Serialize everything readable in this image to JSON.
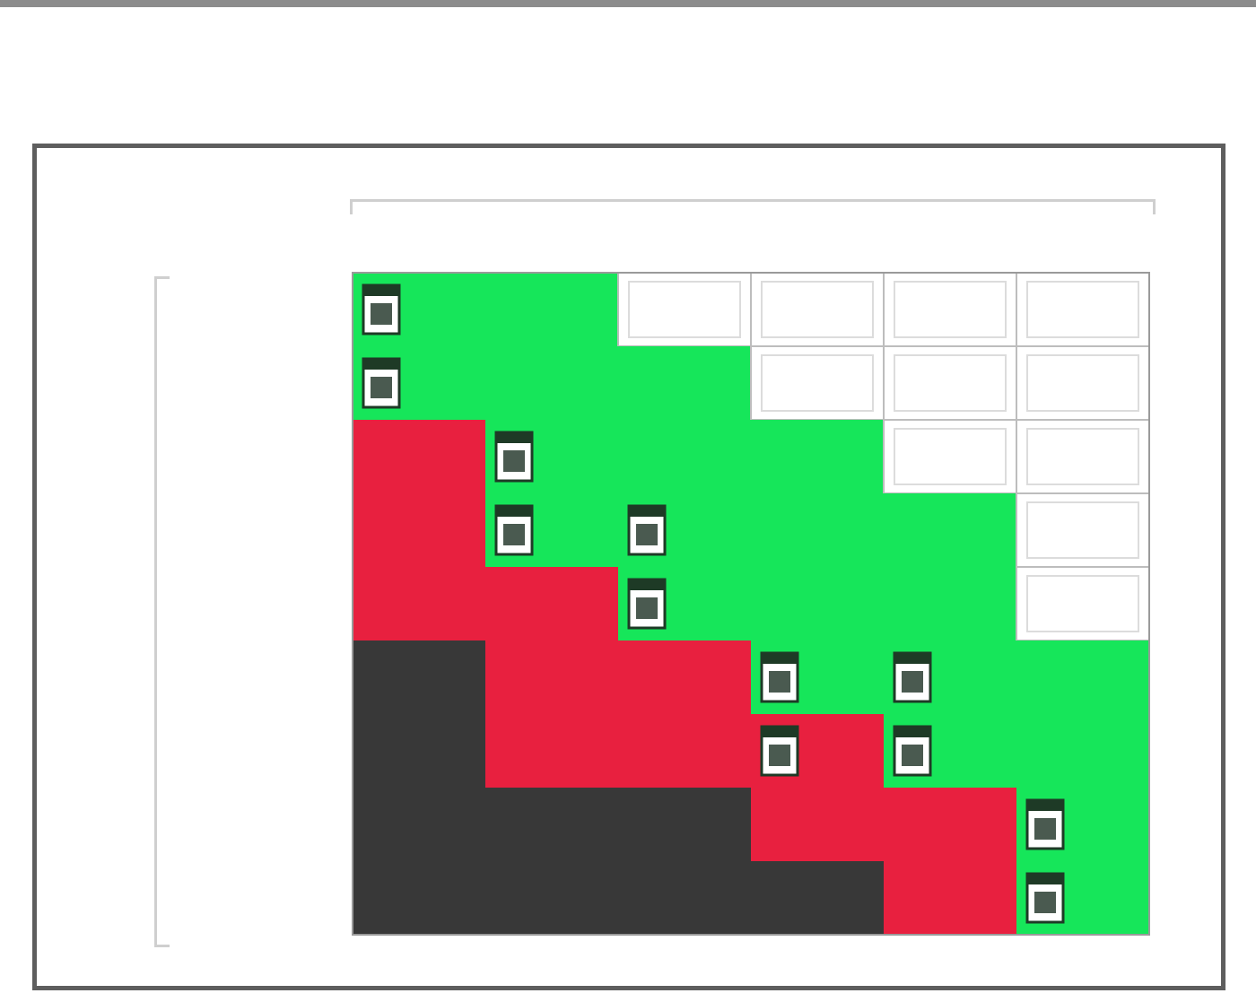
{
  "title": {
    "line1": "",
    "line2": "",
    "subtitle": ""
  },
  "colors": {
    "red": "#e8203f",
    "green": "#16e65a",
    "dark": "#383838",
    "white": "#ffffff"
  },
  "chart_data": {
    "type": "heatmap",
    "column_group_label": "",
    "row_group_label": "",
    "columns": [
      "",
      "",
      "",
      "",
      "",
      ""
    ],
    "rows": [
      "",
      "",
      "",
      "",
      "",
      "",
      "",
      "",
      ""
    ],
    "cells": [
      [
        "green",
        "green",
        "white",
        "white",
        "white",
        "white"
      ],
      [
        "green",
        "green",
        "green",
        "white",
        "white",
        "white"
      ],
      [
        "red",
        "green",
        "green",
        "green",
        "white",
        "white"
      ],
      [
        "red",
        "green",
        "green",
        "green",
        "green",
        "white"
      ],
      [
        "red",
        "red",
        "green",
        "green",
        "green",
        "white"
      ],
      [
        "dark",
        "red",
        "red",
        "green",
        "green",
        "green"
      ],
      [
        "dark",
        "red",
        "red",
        "red",
        "green",
        "green"
      ],
      [
        "dark",
        "dark",
        "dark",
        "red",
        "red",
        "green"
      ],
      [
        "dark",
        "dark",
        "dark",
        "dark",
        "red",
        "green"
      ]
    ],
    "cell_labels": [
      [
        "",
        "",
        "",
        "",
        "",
        ""
      ],
      [
        "",
        "",
        "",
        "",
        "",
        ""
      ],
      [
        "",
        "",
        "",
        "",
        "",
        ""
      ],
      [
        "",
        "",
        "",
        "",
        "",
        ""
      ],
      [
        "",
        "",
        "",
        "",
        "",
        ""
      ],
      [
        "",
        "",
        "",
        "",
        "",
        ""
      ],
      [
        "",
        "",
        "",
        "",
        "",
        ""
      ],
      [
        "",
        "",
        "",
        "",
        "",
        ""
      ],
      [
        "",
        "",
        "",
        "",
        "",
        ""
      ]
    ],
    "calendar_icon_cells": [
      [
        0,
        0
      ],
      [
        1,
        0
      ],
      [
        2,
        1
      ],
      [
        3,
        1
      ],
      [
        3,
        2
      ],
      [
        4,
        2
      ],
      [
        5,
        3
      ],
      [
        5,
        4
      ],
      [
        6,
        3
      ],
      [
        6,
        4
      ],
      [
        7,
        5
      ],
      [
        8,
        5
      ]
    ],
    "legend": "none",
    "grid": true
  }
}
